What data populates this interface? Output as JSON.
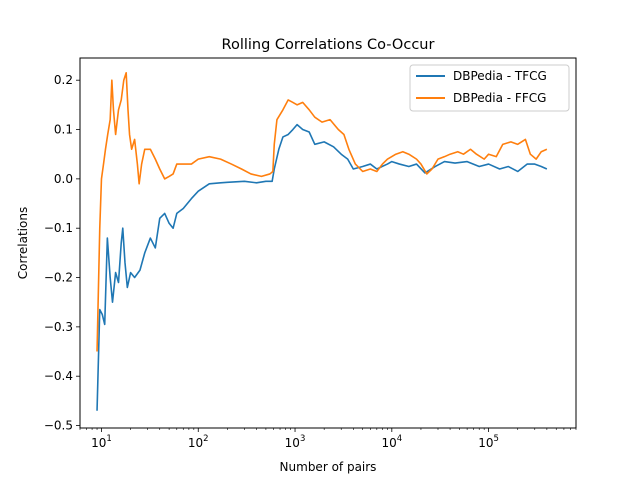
{
  "chart_data": {
    "type": "line",
    "title": "Rolling Correlations Co-Occur",
    "xlabel": "Number of pairs",
    "ylabel": "Correlations",
    "xscale": "log",
    "xlim": [
      6,
      800000
    ],
    "ylim": [
      -0.505,
      0.245
    ],
    "xticks": [
      {
        "value": 10,
        "base": "10",
        "exp": "1"
      },
      {
        "value": 100,
        "base": "10",
        "exp": "2"
      },
      {
        "value": 1000,
        "base": "10",
        "exp": "3"
      },
      {
        "value": 10000,
        "base": "10",
        "exp": "4"
      },
      {
        "value": 100000,
        "base": "10",
        "exp": "5"
      }
    ],
    "yticks": [
      -0.5,
      -0.4,
      -0.3,
      -0.2,
      -0.1,
      0.0,
      0.1,
      0.2
    ],
    "ytick_labels": [
      "−0.5",
      "−0.4",
      "−0.3",
      "−0.2",
      "−0.1",
      "0.0",
      "0.1",
      "0.2"
    ],
    "grid": false,
    "legend": "top-right",
    "series": [
      {
        "name": "DBPedia - TFCG",
        "color": "#1f77b4",
        "points": [
          [
            9,
            -0.47
          ],
          [
            9.6,
            -0.265
          ],
          [
            10.2,
            -0.275
          ],
          [
            10.8,
            -0.295
          ],
          [
            11.5,
            -0.12
          ],
          [
            12.3,
            -0.2
          ],
          [
            13,
            -0.25
          ],
          [
            14,
            -0.19
          ],
          [
            15,
            -0.21
          ],
          [
            16,
            -0.13
          ],
          [
            16.6,
            -0.1
          ],
          [
            17.5,
            -0.17
          ],
          [
            18.5,
            -0.22
          ],
          [
            20,
            -0.19
          ],
          [
            22,
            -0.2
          ],
          [
            25,
            -0.185
          ],
          [
            28,
            -0.15
          ],
          [
            32,
            -0.12
          ],
          [
            36,
            -0.14
          ],
          [
            40,
            -0.08
          ],
          [
            45,
            -0.07
          ],
          [
            50,
            -0.09
          ],
          [
            55,
            -0.1
          ],
          [
            60,
            -0.07
          ],
          [
            70,
            -0.06
          ],
          [
            85,
            -0.04
          ],
          [
            100,
            -0.025
          ],
          [
            130,
            -0.01
          ],
          [
            170,
            -0.008
          ],
          [
            200,
            -0.007
          ],
          [
            300,
            -0.005
          ],
          [
            400,
            -0.008
          ],
          [
            500,
            -0.005
          ],
          [
            580,
            -0.005
          ],
          [
            610,
            0.02
          ],
          [
            680,
            0.06
          ],
          [
            750,
            0.085
          ],
          [
            850,
            0.09
          ],
          [
            950,
            0.1
          ],
          [
            1050,
            0.11
          ],
          [
            1200,
            0.1
          ],
          [
            1400,
            0.095
          ],
          [
            1600,
            0.07
          ],
          [
            2000,
            0.075
          ],
          [
            2500,
            0.065
          ],
          [
            3000,
            0.05
          ],
          [
            3500,
            0.04
          ],
          [
            4000,
            0.02
          ],
          [
            5000,
            0.025
          ],
          [
            6000,
            0.03
          ],
          [
            7000,
            0.02
          ],
          [
            9000,
            0.03
          ],
          [
            10000,
            0.035
          ],
          [
            12000,
            0.03
          ],
          [
            15000,
            0.025
          ],
          [
            18000,
            0.03
          ],
          [
            22000,
            0.012
          ],
          [
            28000,
            0.025
          ],
          [
            35000,
            0.035
          ],
          [
            45000,
            0.032
          ],
          [
            60000,
            0.035
          ],
          [
            80000,
            0.025
          ],
          [
            100000,
            0.03
          ],
          [
            130000,
            0.02
          ],
          [
            160000,
            0.025
          ],
          [
            200000,
            0.015
          ],
          [
            250000,
            0.03
          ],
          [
            300000,
            0.03
          ],
          [
            350000,
            0.025
          ],
          [
            400000,
            0.02
          ]
        ]
      },
      {
        "name": "DBPedia - FFCG",
        "color": "#ff7f0e",
        "points": [
          [
            9,
            -0.35
          ],
          [
            9.6,
            -0.1
          ],
          [
            10,
            0.0
          ],
          [
            10.5,
            0.03
          ],
          [
            11,
            0.06
          ],
          [
            11.6,
            0.09
          ],
          [
            12.3,
            0.12
          ],
          [
            12.8,
            0.2
          ],
          [
            13.3,
            0.14
          ],
          [
            14,
            0.09
          ],
          [
            15,
            0.14
          ],
          [
            16,
            0.16
          ],
          [
            17,
            0.2
          ],
          [
            18,
            0.215
          ],
          [
            18.8,
            0.14
          ],
          [
            19.5,
            0.09
          ],
          [
            20.5,
            0.06
          ],
          [
            22,
            0.08
          ],
          [
            23.5,
            0.03
          ],
          [
            24.5,
            -0.01
          ],
          [
            26,
            0.03
          ],
          [
            28,
            0.06
          ],
          [
            32,
            0.06
          ],
          [
            36,
            0.04
          ],
          [
            40,
            0.02
          ],
          [
            45,
            0.0
          ],
          [
            50,
            0.005
          ],
          [
            55,
            0.01
          ],
          [
            60,
            0.03
          ],
          [
            70,
            0.03
          ],
          [
            85,
            0.03
          ],
          [
            100,
            0.04
          ],
          [
            130,
            0.045
          ],
          [
            170,
            0.04
          ],
          [
            220,
            0.03
          ],
          [
            280,
            0.02
          ],
          [
            350,
            0.01
          ],
          [
            450,
            0.005
          ],
          [
            550,
            0.01
          ],
          [
            590,
            0.015
          ],
          [
            610,
            0.07
          ],
          [
            650,
            0.12
          ],
          [
            750,
            0.14
          ],
          [
            850,
            0.16
          ],
          [
            950,
            0.155
          ],
          [
            1050,
            0.15
          ],
          [
            1200,
            0.155
          ],
          [
            1400,
            0.14
          ],
          [
            1600,
            0.125
          ],
          [
            1900,
            0.115
          ],
          [
            2300,
            0.12
          ],
          [
            2800,
            0.1
          ],
          [
            3200,
            0.09
          ],
          [
            3600,
            0.06
          ],
          [
            4200,
            0.03
          ],
          [
            5000,
            0.015
          ],
          [
            6000,
            0.02
          ],
          [
            7000,
            0.015
          ],
          [
            8000,
            0.03
          ],
          [
            9000,
            0.04
          ],
          [
            11000,
            0.05
          ],
          [
            13000,
            0.055
          ],
          [
            15000,
            0.05
          ],
          [
            18000,
            0.04
          ],
          [
            20000,
            0.03
          ],
          [
            23000,
            0.01
          ],
          [
            26000,
            0.02
          ],
          [
            30000,
            0.04
          ],
          [
            35000,
            0.045
          ],
          [
            40000,
            0.05
          ],
          [
            48000,
            0.055
          ],
          [
            55000,
            0.05
          ],
          [
            65000,
            0.06
          ],
          [
            75000,
            0.05
          ],
          [
            90000,
            0.04
          ],
          [
            100000,
            0.05
          ],
          [
            120000,
            0.045
          ],
          [
            140000,
            0.07
          ],
          [
            170000,
            0.075
          ],
          [
            200000,
            0.07
          ],
          [
            240000,
            0.08
          ],
          [
            270000,
            0.05
          ],
          [
            310000,
            0.04
          ],
          [
            350000,
            0.055
          ],
          [
            400000,
            0.06
          ]
        ]
      }
    ]
  }
}
